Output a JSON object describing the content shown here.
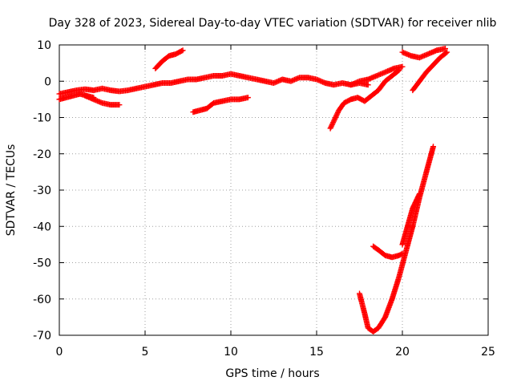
{
  "chart_data": {
    "type": "scatter",
    "title": "Day 328 of 2023, Sidereal Day-to-day VTEC variation (SDTVAR) for receiver nlib",
    "xlabel": "GPS time / hours",
    "ylabel": "SDTVAR / TECUs",
    "xlim": [
      0,
      25
    ],
    "ylim": [
      -70,
      10
    ],
    "xticks": [
      0,
      5,
      10,
      15,
      20,
      25
    ],
    "yticks": [
      -70,
      -60,
      -50,
      -40,
      -30,
      -20,
      -10,
      0,
      10
    ],
    "grid": true,
    "marker": "plus",
    "color": "#ff0000",
    "series": [
      {
        "x": [
          0.0,
          0.5,
          1.0,
          1.5,
          2.0,
          2.5,
          3.0,
          3.5,
          4.0,
          4.5,
          5.0,
          5.5,
          6.0,
          6.5,
          7.0,
          7.5,
          8.0,
          8.5,
          9.0,
          9.5,
          10.0,
          10.5,
          11.0,
          11.5,
          12.0,
          12.5,
          13.0,
          13.5,
          14.0,
          14.5,
          15.0,
          15.5,
          16.0,
          16.5,
          17.0,
          17.5,
          18.0
        ],
        "y": [
          -3.5,
          -3.0,
          -2.5,
          -2.2,
          -2.5,
          -2.0,
          -2.5,
          -2.8,
          -2.5,
          -2.0,
          -1.5,
          -1.0,
          -0.5,
          -0.5,
          0.0,
          0.5,
          0.5,
          1.0,
          1.5,
          1.5,
          2.0,
          1.5,
          1.0,
          0.5,
          0.0,
          -0.5,
          0.5,
          0.0,
          1.0,
          1.0,
          0.5,
          -0.5,
          -1.0,
          -0.5,
          -1.0,
          -0.5,
          -1.0
        ]
      },
      {
        "x": [
          0.0,
          0.4,
          0.8,
          1.2,
          1.6,
          2.0
        ],
        "y": [
          -5.0,
          -4.5,
          -4.0,
          -3.5,
          -4.0,
          -4.5
        ]
      },
      {
        "x": [
          1.5,
          2.0,
          2.5,
          3.0,
          3.5
        ],
        "y": [
          -4.0,
          -5.0,
          -6.0,
          -6.5,
          -6.5
        ]
      },
      {
        "x": [
          5.6,
          6.0,
          6.4,
          6.8,
          7.2
        ],
        "y": [
          3.5,
          5.5,
          7.0,
          7.5,
          8.5
        ]
      },
      {
        "x": [
          7.8,
          8.2,
          8.6,
          9.0,
          9.5,
          10.0,
          10.5,
          11.0
        ],
        "y": [
          -8.5,
          -8.0,
          -7.5,
          -6.0,
          -5.5,
          -5.0,
          -5.0,
          -4.5
        ]
      },
      {
        "x": [
          15.8,
          16.0,
          16.3,
          16.6,
          17.0,
          17.4,
          17.8,
          18.2,
          18.6,
          19.0,
          19.4,
          19.8
        ],
        "y": [
          -13.0,
          -11.0,
          -8.0,
          -6.0,
          -5.0,
          -4.5,
          -5.5,
          -4.0,
          -2.5,
          0.0,
          1.5,
          3.0
        ]
      },
      {
        "x": [
          17.0,
          17.5,
          18.0,
          18.5,
          19.0,
          19.5,
          20.0
        ],
        "y": [
          -1.0,
          0.0,
          0.5,
          1.5,
          2.5,
          3.5,
          4.0
        ]
      },
      {
        "x": [
          20.0,
          20.5,
          21.0,
          21.5,
          22.0,
          22.5
        ],
        "y": [
          8.0,
          7.0,
          6.5,
          7.5,
          8.5,
          9.0
        ]
      },
      {
        "x": [
          20.6,
          21.0,
          21.4,
          21.8,
          22.2,
          22.6
        ],
        "y": [
          -2.5,
          0.0,
          2.5,
          4.5,
          6.5,
          8.0
        ]
      },
      {
        "x": [
          17.5,
          17.8,
          18.0,
          18.3,
          18.6,
          19.0,
          19.4,
          19.8,
          20.2,
          20.6,
          21.0,
          21.4,
          21.8
        ],
        "y": [
          -58.5,
          -64.0,
          -68.0,
          -69.0,
          -68.0,
          -65.0,
          -60.0,
          -54.0,
          -47.0,
          -40.0,
          -32.0,
          -25.0,
          -18.0
        ]
      },
      {
        "x": [
          18.3,
          18.6,
          19.0,
          19.4,
          19.8,
          20.0
        ],
        "y": [
          -45.5,
          -46.5,
          -48.0,
          -48.5,
          -48.0,
          -47.5
        ]
      },
      {
        "x": [
          20.0,
          20.3,
          20.6,
          21.0
        ],
        "y": [
          -45.0,
          -40.0,
          -35.0,
          -31.0
        ]
      }
    ]
  }
}
